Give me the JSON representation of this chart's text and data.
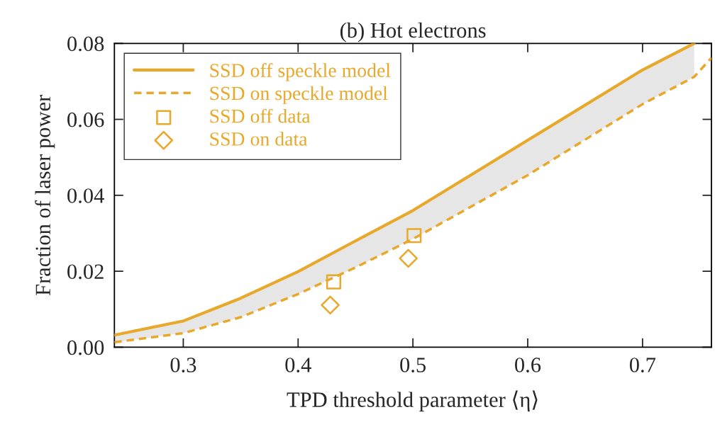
{
  "chart_data": {
    "type": "line",
    "title": "(b) Hot electrons",
    "xlabel": "TPD threshold parameter ⟨η⟩",
    "ylabel": "Fraction of laser power",
    "xlim": [
      0.24,
      0.76
    ],
    "xticks": [
      0.3,
      0.4,
      0.5,
      0.6,
      0.7
    ],
    "ylim": [
      0,
      0.08
    ],
    "yticks": [
      {
        "value": 0,
        "label": "0.00"
      },
      {
        "value": 0.02,
        "label": "0.02"
      },
      {
        "value": 0.04,
        "label": "0.04"
      },
      {
        "value": 0.06,
        "label": "0.06"
      },
      {
        "value": 0.08,
        "label": "0.08"
      }
    ],
    "grid": false,
    "legend": "top left",
    "series": [
      {
        "name": "SSD off speckle model",
        "line_style": "solid",
        "marker": "none",
        "color": "#e8a82a",
        "x": [
          0.24,
          0.3,
          0.35,
          0.4,
          0.45,
          0.5,
          0.6,
          0.7,
          0.745
        ],
        "values": [
          0.0032,
          0.0069,
          0.0129,
          0.0199,
          0.028,
          0.036,
          0.0545,
          0.073,
          0.08
        ],
        "lower": [
          0.0013,
          0.0037,
          0.0079,
          0.014,
          0.021,
          0.0285,
          0.0453,
          0.064,
          0.0712
        ],
        "upper": [
          0.0032,
          0.0069,
          0.0129,
          0.0199,
          0.028,
          0.036,
          0.0545,
          0.073,
          0.08
        ]
      },
      {
        "name": "SSD on speckle model",
        "line_style": "dashed",
        "marker": "none",
        "color": "#e8a82a",
        "x": [
          0.24,
          0.3,
          0.35,
          0.4,
          0.45,
          0.5,
          0.6,
          0.7,
          0.745,
          0.76
        ],
        "values": [
          0.0013,
          0.0037,
          0.0079,
          0.014,
          0.021,
          0.0285,
          0.0453,
          0.064,
          0.0712,
          0.0762
        ]
      },
      {
        "name": "SSD off data",
        "type": "scatter",
        "marker": "square",
        "color": "#e8a82a",
        "x": [
          0.431,
          0.501
        ],
        "values": [
          0.0172,
          0.0294
        ]
      },
      {
        "name": "SSD on data",
        "type": "scatter",
        "marker": "diamond",
        "color": "#e8a82a",
        "x": [
          0.428,
          0.496
        ],
        "values": [
          0.0111,
          0.0234
        ]
      }
    ]
  }
}
